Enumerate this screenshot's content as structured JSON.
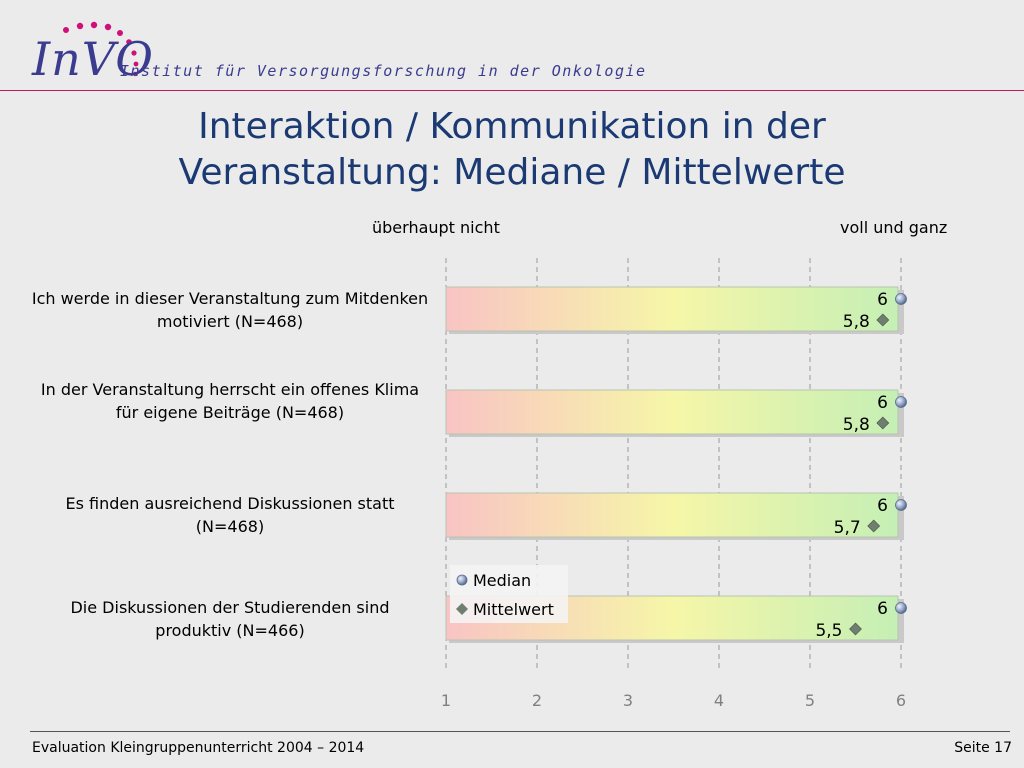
{
  "header": {
    "logo_text": "InVO",
    "institute": "Institut für Versorgungsforschung in der Onkologie"
  },
  "title_line1": "Interaktion / Kommunikation in der",
  "title_line2": "Veranstaltung: Mediane / Mittelwerte",
  "scale": {
    "low_label": "überhaupt nicht",
    "high_label": "voll und ganz"
  },
  "footer": {
    "left": "Evaluation Kleingruppenunterricht 2004 – 2014",
    "right": "Seite 17"
  },
  "chart_data": {
    "type": "bar",
    "categories": [
      "Ich werde in dieser Veranstaltung zum Mitdenken motiviert (N=468)",
      "In der Veranstaltung herrscht ein offenes Klima für eigene Beiträge (N=468)",
      "Es finden ausreichend Diskussionen statt (N=468)",
      "Die Diskussionen der Studierenden sind produktiv (N=466)"
    ],
    "series": [
      {
        "name": "Median",
        "values": [
          6,
          6,
          6,
          6
        ],
        "labels": [
          "6",
          "6",
          "6",
          "6"
        ]
      },
      {
        "name": "Mittelwert",
        "values": [
          5.8,
          5.8,
          5.7,
          5.5
        ],
        "labels": [
          "5,8",
          "5,8",
          "5,7",
          "5,5"
        ]
      }
    ],
    "xlim": [
      1,
      6
    ],
    "xticks": [
      "1",
      "2",
      "3",
      "4",
      "5",
      "6"
    ],
    "grid": true,
    "legend": "over-bottom-left-of-chart",
    "colors": {
      "gradient_low": "#f9c4c4",
      "gradient_mid": "#f6f6a8",
      "gradient_high": "#c5efb5",
      "median_marker": "#7f93b8",
      "mean_marker": "#6f7f6f"
    }
  }
}
